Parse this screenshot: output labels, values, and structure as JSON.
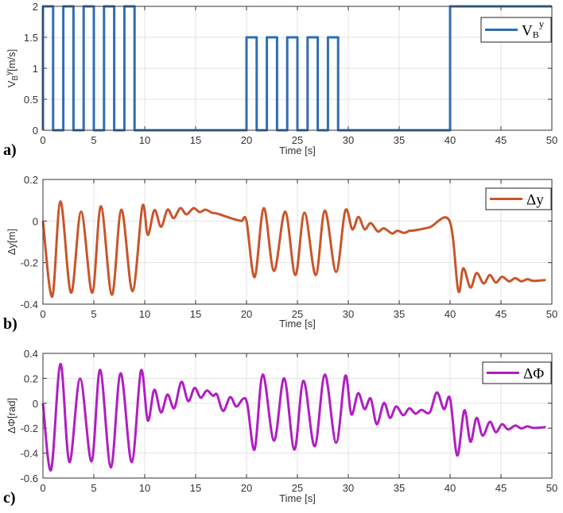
{
  "chart_data": [
    {
      "type": "line",
      "panel_label": "a)",
      "xlabel": "Time [s]",
      "ylabel": "V_B^y[m/s]",
      "ylabel_main": "V",
      "ylabel_sub": "B",
      "ylabel_sup": "y",
      "ylabel_unit": "[m/s]",
      "xlim": [
        0,
        50
      ],
      "ylim": [
        0,
        2
      ],
      "xticks": [
        0,
        5,
        10,
        15,
        20,
        25,
        30,
        35,
        40,
        45,
        50
      ],
      "yticks": [
        0,
        0.5,
        1,
        1.5,
        2
      ],
      "grid": true,
      "step": true,
      "legend": {
        "label": "V_B^y",
        "main": "V",
        "sub": "B",
        "sup": "y",
        "placement": "top-right"
      },
      "color": "#2f6db5",
      "series": [
        {
          "name": "V_B^y",
          "x": [
            0,
            1,
            2,
            3,
            4,
            5,
            6,
            7,
            8,
            9,
            20,
            21,
            22,
            23,
            24,
            25,
            26,
            27,
            28,
            29,
            40,
            50
          ],
          "y": [
            2,
            0,
            2,
            0,
            2,
            0,
            2,
            0,
            2,
            0,
            1.5,
            0,
            1.5,
            0,
            1.5,
            0,
            1.5,
            0,
            1.5,
            0,
            2,
            2
          ]
        }
      ]
    },
    {
      "type": "line",
      "panel_label": "b)",
      "xlabel": "Time [s]",
      "ylabel": "Δy[m]",
      "xlim": [
        0,
        50
      ],
      "ylim": [
        -0.4,
        0.2
      ],
      "xticks": [
        0,
        5,
        10,
        15,
        20,
        25,
        30,
        35,
        40,
        45,
        50
      ],
      "yticks": [
        -0.4,
        -0.2,
        0,
        0.2
      ],
      "grid": true,
      "legend": {
        "label": "Δy",
        "placement": "top-right"
      },
      "color": "#c9552a",
      "series": [
        {
          "name": "Δy",
          "x": [
            0,
            0.91,
            1.72,
            2.76,
            3.75,
            4.84,
            5.7,
            6.77,
            7.71,
            8.8,
            9.77,
            10.3,
            10.96,
            11.6,
            12.24,
            12.84,
            13.5,
            14.1,
            14.8,
            15.4,
            15.96,
            16.6,
            17.1,
            17.9,
            18.7,
            19.5,
            20.0,
            20.8,
            21.7,
            22.7,
            23.8,
            24.8,
            25.7,
            26.8,
            27.7,
            28.8,
            29.7,
            30.4,
            31.0,
            31.6,
            32.2,
            32.9,
            33.5,
            34.3,
            34.8,
            35.5,
            36.0,
            36.5,
            38.0,
            39.95,
            40.8,
            41.3,
            42.0,
            42.6,
            43.3,
            43.9,
            44.5,
            45.1,
            45.8,
            46.4,
            47.0,
            47.6,
            48.2,
            49.4
          ],
          "y": [
            0,
            -0.364,
            0.094,
            -0.345,
            0.045,
            -0.345,
            0.071,
            -0.355,
            0.055,
            -0.338,
            0.071,
            -0.067,
            0.053,
            -0.028,
            0.055,
            0.014,
            0.062,
            0.032,
            0.062,
            0.043,
            0.055,
            0.04,
            0.036,
            0.023,
            0.01,
            0.0,
            0.0,
            -0.27,
            0.062,
            -0.24,
            0.045,
            -0.26,
            0.04,
            -0.26,
            0.05,
            -0.245,
            0.05,
            -0.04,
            0.02,
            -0.04,
            -0.01,
            -0.05,
            -0.035,
            -0.06,
            -0.047,
            -0.057,
            -0.047,
            -0.045,
            -0.03,
            0.0,
            -0.335,
            -0.227,
            -0.32,
            -0.25,
            -0.3,
            -0.26,
            -0.296,
            -0.268,
            -0.29,
            -0.275,
            -0.29,
            -0.28,
            -0.288,
            -0.284
          ]
        }
      ]
    },
    {
      "type": "line",
      "panel_label": "c)",
      "xlabel": "Time [s]",
      "ylabel": "ΔΦ[rad]",
      "xlim": [
        0,
        50
      ],
      "ylim": [
        -0.6,
        0.4
      ],
      "xticks": [
        0,
        5,
        10,
        15,
        20,
        25,
        30,
        35,
        40,
        45,
        50
      ],
      "yticks": [
        -0.6,
        -0.4,
        -0.2,
        0,
        0.2,
        0.4
      ],
      "grid": true,
      "legend": {
        "label": "ΔΦ",
        "placement": "top-right"
      },
      "color": "#b01ec2",
      "series": [
        {
          "name": "ΔΦ",
          "x": [
            0,
            0.8,
            1.72,
            2.6,
            3.65,
            4.77,
            5.62,
            6.67,
            7.63,
            8.72,
            9.63,
            10.3,
            10.94,
            11.6,
            12.24,
            12.9,
            13.6,
            14.27,
            14.9,
            15.5,
            16.1,
            16.7,
            17.1,
            17.7,
            18.4,
            19.0,
            19.7,
            20.1,
            20.8,
            21.6,
            22.7,
            23.7,
            24.7,
            25.6,
            26.7,
            27.7,
            28.8,
            29.7,
            30.3,
            30.97,
            31.6,
            32.2,
            32.8,
            33.5,
            34.1,
            34.7,
            35.4,
            36.0,
            36.6,
            37.2,
            38.0,
            38.7,
            39.4,
            40.0,
            40.7,
            41.4,
            42.0,
            42.6,
            43.2,
            43.9,
            44.5,
            45.1,
            45.7,
            46.4,
            47.0,
            47.6,
            48.2,
            49.4
          ],
          "y": [
            0,
            -0.536,
            0.315,
            -0.472,
            0.198,
            -0.466,
            0.268,
            -0.515,
            0.24,
            -0.472,
            0.262,
            -0.138,
            0.108,
            -0.074,
            0.07,
            -0.04,
            0.172,
            0.017,
            0.123,
            0.045,
            0.102,
            0.06,
            0.07,
            -0.062,
            0.049,
            -0.026,
            0.038,
            -0.015,
            -0.37,
            0.23,
            -0.3,
            0.2,
            -0.372,
            0.18,
            -0.345,
            0.23,
            -0.317,
            0.22,
            -0.089,
            0.081,
            -0.047,
            0.038,
            -0.168,
            0.002,
            -0.117,
            -0.026,
            -0.096,
            -0.04,
            -0.083,
            -0.053,
            -0.074,
            0.087,
            -0.047,
            0.038,
            -0.419,
            -0.057,
            -0.309,
            -0.117,
            -0.26,
            -0.149,
            -0.232,
            -0.168,
            -0.21,
            -0.179,
            -0.202,
            -0.185,
            -0.198,
            -0.191
          ]
        }
      ]
    }
  ]
}
